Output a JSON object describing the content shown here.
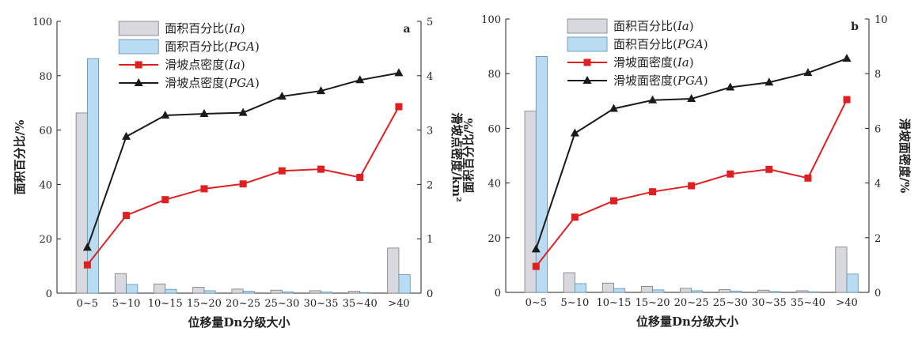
{
  "colors": {
    "bar_ia": "#d7d9de",
    "bar_ia_stroke": "#7a7a7a",
    "bar_pga": "#b9dcf2",
    "bar_pga_stroke": "#5f8fb0",
    "line_ia": "#e02020",
    "line_pga": "#1a1a1a"
  },
  "chart_data": [
    {
      "type": "bar",
      "panel": "a",
      "categories": [
        "0~5",
        "5~10",
        "10~15",
        "15~20",
        "20~25",
        "25~30",
        "30~35",
        "35~40",
        ">40"
      ],
      "xlabel": "位移量Dn分级大小",
      "ylabel": "面积百分比/%",
      "ylabel2": "滑坡点密度/km²",
      "ylim": [
        0,
        100
      ],
      "ylim2": [
        0,
        5
      ],
      "yticks": [
        "0",
        "20",
        "40",
        "60",
        "80",
        "100"
      ],
      "yticks2": [
        "0",
        "1",
        "2",
        "3",
        "4",
        "5"
      ],
      "legend_position": "top-center",
      "series": [
        {
          "name": "面积百分比(Ia)",
          "kind": "bar",
          "axis": "left",
          "values": [
            66.3,
            7.2,
            3.4,
            2.2,
            1.5,
            1.1,
            0.9,
            0.7,
            16.6
          ]
        },
        {
          "name": "面积百分比(PGA)",
          "kind": "bar",
          "axis": "left",
          "values": [
            86.3,
            3.2,
            1.4,
            0.9,
            0.7,
            0.5,
            0.4,
            0.2,
            6.8
          ]
        },
        {
          "name": "滑坡点密度(Ia)",
          "kind": "line",
          "marker": "square",
          "axis": "right",
          "values": [
            0.52,
            1.43,
            1.72,
            1.92,
            2.01,
            2.25,
            2.28,
            2.13,
            3.43
          ]
        },
        {
          "name": "滑坡点密度(PGA)",
          "kind": "line",
          "marker": "triangle",
          "axis": "right",
          "values": [
            0.84,
            2.88,
            3.27,
            3.3,
            3.32,
            3.62,
            3.72,
            3.92,
            4.05
          ]
        }
      ],
      "legend": [
        {
          "label": "面积百分比(",
          "italic": "Ia",
          "close": ")"
        },
        {
          "label": "面积百分比(",
          "italic": "PGA",
          "close": ")"
        },
        {
          "label": "滑坡点密度(",
          "italic": "Ia",
          "close": ")"
        },
        {
          "label": "滑坡点密度(",
          "italic": "PGA",
          "close": ")"
        }
      ]
    },
    {
      "type": "bar",
      "panel": "b",
      "categories": [
        "0~5",
        "5~10",
        "10~15",
        "15~20",
        "20~25",
        "25~30",
        "30~35",
        "35~40",
        ">40"
      ],
      "xlabel": "位移量Dn分级大小",
      "ylabel": "面积百分比/%",
      "ylabel2": "滑坡面密度/%",
      "ylim": [
        0,
        100
      ],
      "ylim2": [
        0,
        10
      ],
      "yticks": [
        "0",
        "20",
        "40",
        "60",
        "80",
        "100"
      ],
      "yticks2": [
        "0",
        "2",
        "4",
        "6",
        "8",
        "10"
      ],
      "legend_position": "top-center",
      "series": [
        {
          "name": "面积百分比(Ia)",
          "kind": "bar",
          "axis": "left",
          "values": [
            66.3,
            7.2,
            3.4,
            2.2,
            1.5,
            1.0,
            0.8,
            0.6,
            16.6
          ]
        },
        {
          "name": "面积百分比(PGA)",
          "kind": "bar",
          "axis": "left",
          "values": [
            86.3,
            3.2,
            1.4,
            0.9,
            0.6,
            0.5,
            0.3,
            0.2,
            6.7
          ]
        },
        {
          "name": "滑坡面密度(Ia)",
          "kind": "line",
          "marker": "square",
          "axis": "right",
          "values": [
            0.95,
            2.75,
            3.35,
            3.68,
            3.9,
            4.33,
            4.5,
            4.18,
            7.05
          ]
        },
        {
          "name": "滑坡面密度(PGA)",
          "kind": "line",
          "marker": "triangle",
          "axis": "right",
          "values": [
            1.58,
            5.82,
            6.72,
            7.03,
            7.08,
            7.5,
            7.68,
            8.03,
            8.55
          ]
        }
      ],
      "legend": [
        {
          "label": "面积百分比(",
          "italic": "Ia",
          "close": ")"
        },
        {
          "label": "面积百分比(",
          "italic": "PGA",
          "close": ")"
        },
        {
          "label": "滑坡面密度(",
          "italic": "Ia",
          "close": ")"
        },
        {
          "label": "滑坡面密度(",
          "italic": "PGA",
          "close": ")"
        }
      ]
    }
  ]
}
